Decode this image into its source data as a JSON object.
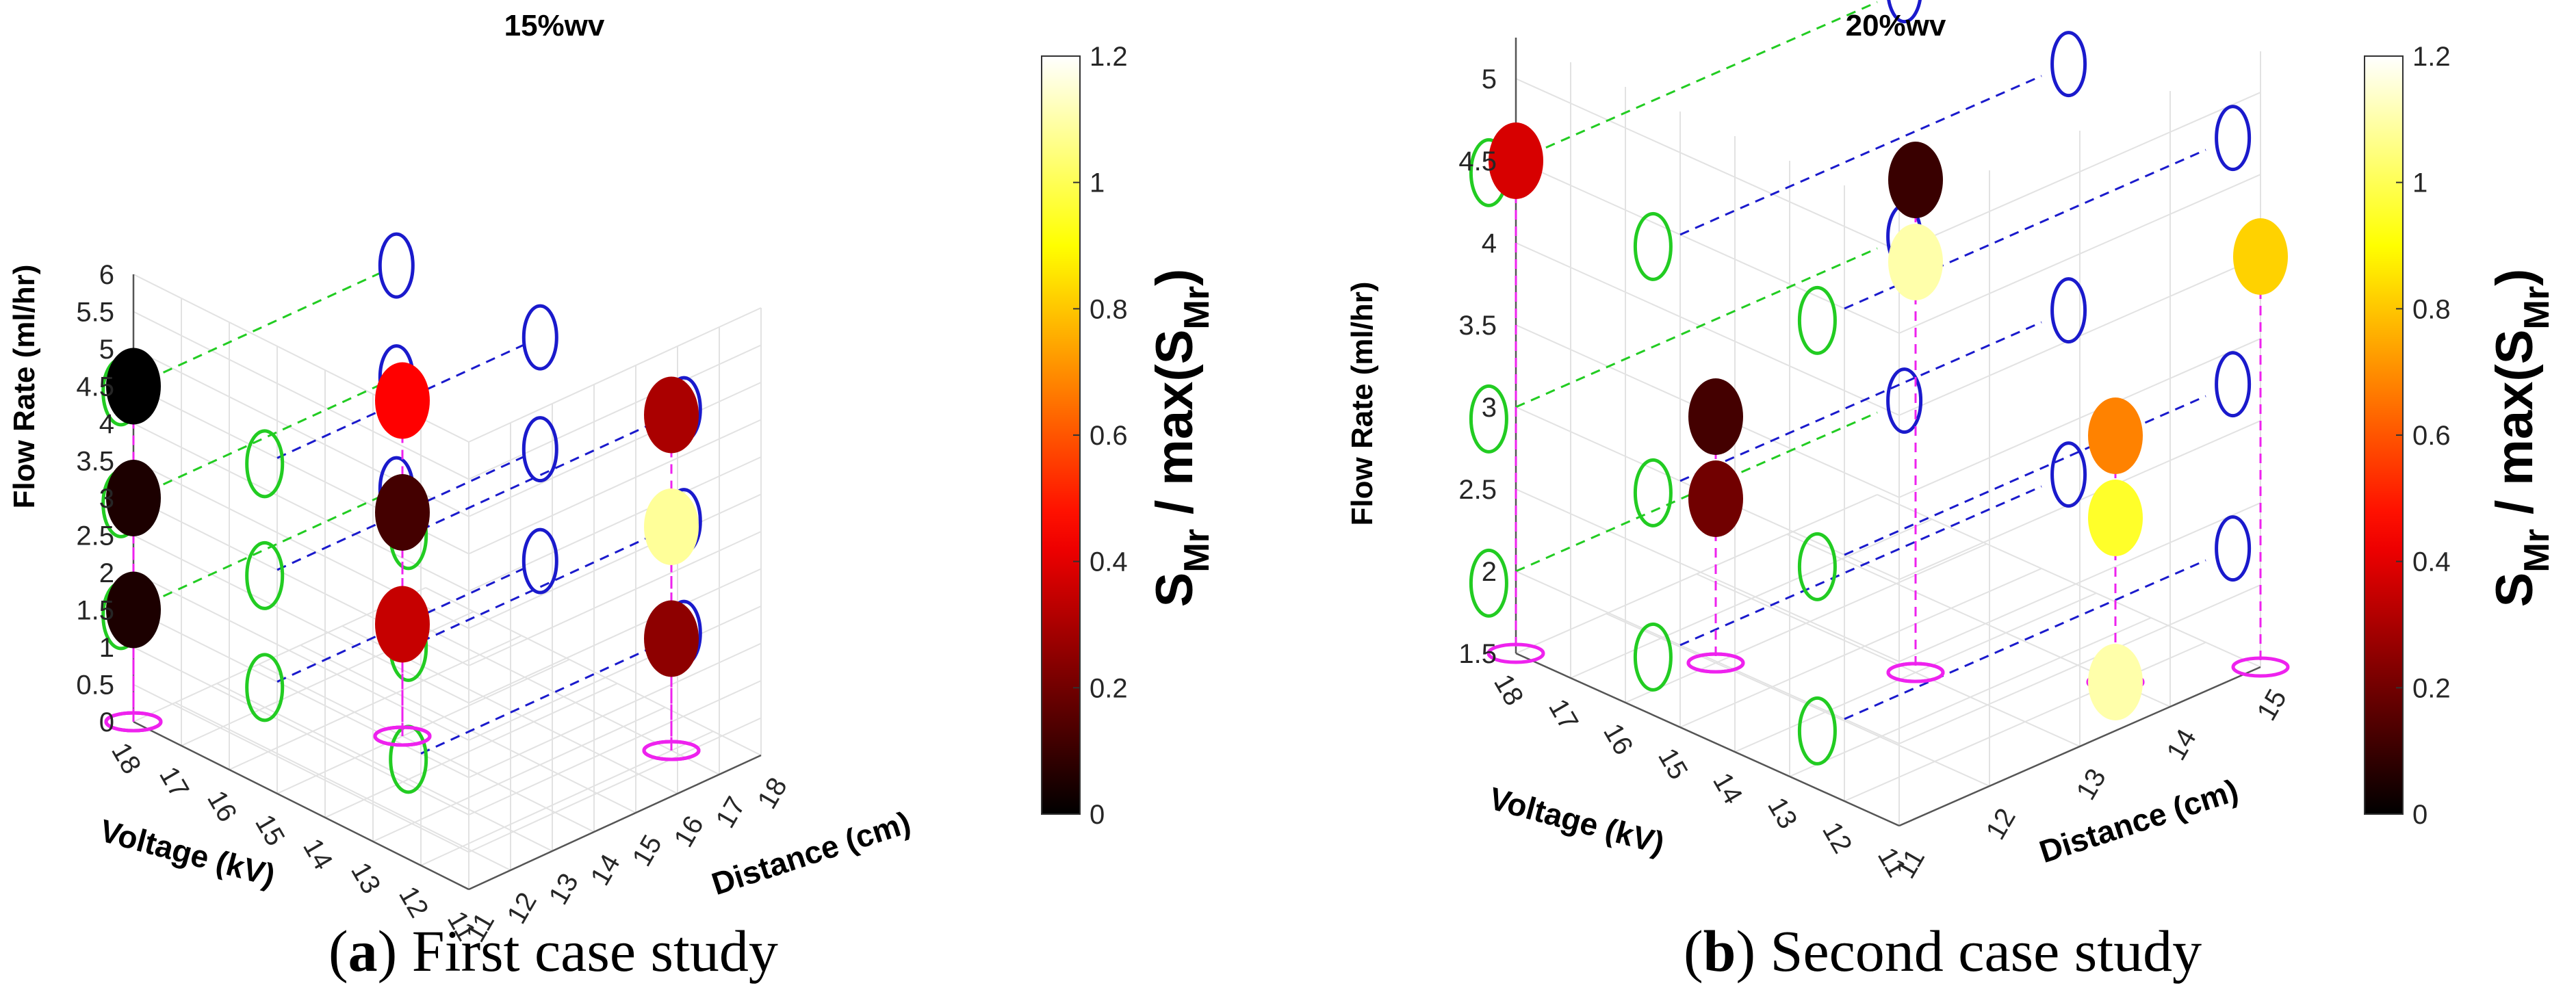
{
  "captions": {
    "a_letter": "a",
    "a_text": " First case study",
    "b_letter": "b",
    "b_text": " Second case study"
  },
  "colorbar": {
    "label_main": "S",
    "label_sub": "Mr",
    "label_mid": " / max(S",
    "label_sub2": "Mr",
    "label_end": ")"
  },
  "colors": {
    "spinning_ring": "#22cc22",
    "distance_ring": "#1a1acc",
    "projection": "#ee22ee",
    "grid": "#e2e2e2"
  },
  "chart_data": [
    {
      "type": "scatter3d",
      "title": "15%wv",
      "zlabel": "Flow Rate (ml/hr)",
      "xlabel": "Voltage (kV)",
      "ylabel": "Distance (cm)",
      "z_ticks": [
        "0",
        "0.5",
        "1",
        "1.5",
        "2",
        "2.5",
        "3",
        "3.5",
        "4",
        "4.5",
        "5",
        "5.5",
        "6"
      ],
      "x_ticks": [
        "18",
        "17",
        "16",
        "15",
        "14",
        "13",
        "12",
        "11"
      ],
      "y_ticks": [
        "11",
        "12",
        "13",
        "14",
        "15",
        "16",
        "17",
        "18"
      ],
      "colorbar": {
        "min": 0,
        "max": 1.2,
        "ticks": [
          "0",
          "0.2",
          "0.4",
          "0.6",
          "0.8",
          "1",
          "1.2"
        ],
        "colormap": "hot"
      },
      "points": [
        {
          "voltage": 18,
          "distance": 11,
          "flow": 4.5,
          "value": 0.0
        },
        {
          "voltage": 18,
          "distance": 11,
          "flow": 3.0,
          "value": 0.05
        },
        {
          "voltage": 18,
          "distance": 11,
          "flow": 1.5,
          "value": 0.05
        },
        {
          "voltage": 15,
          "distance": 14,
          "flow": 4.5,
          "value": 0.45
        },
        {
          "voltage": 15,
          "distance": 14,
          "flow": 3.0,
          "value": 0.12
        },
        {
          "voltage": 15,
          "distance": 14,
          "flow": 1.5,
          "value": 0.35
        },
        {
          "voltage": 12,
          "distance": 17,
          "flow": 4.5,
          "value": 0.3
        },
        {
          "voltage": 12,
          "distance": 17,
          "flow": 3.0,
          "value": 1.08
        },
        {
          "voltage": 12,
          "distance": 17,
          "flow": 1.5,
          "value": 0.25
        }
      ]
    },
    {
      "type": "scatter3d",
      "title": "20%wv",
      "zlabel": "Flow Rate (ml/hr)",
      "xlabel": "Voltage (kV)",
      "ylabel": "Distance (cm)",
      "z_ticks": [
        "1.5",
        "2",
        "2.5",
        "3",
        "3.5",
        "4",
        "4.5",
        "5"
      ],
      "x_ticks": [
        "18",
        "17",
        "16",
        "15",
        "14",
        "13",
        "12",
        "11"
      ],
      "y_ticks": [
        "11",
        "12",
        "13",
        "14",
        "15"
      ],
      "colorbar": {
        "min": 0,
        "max": 1.2,
        "ticks": [
          "0",
          "0.2",
          "0.4",
          "0.6",
          "0.8",
          "1",
          "1.2"
        ],
        "colormap": "hot"
      },
      "points": [
        {
          "voltage": 18,
          "distance": 11,
          "flow": 4.5,
          "value": 0.38
        },
        {
          "voltage": 16,
          "distance": 12,
          "flow": 3.0,
          "value": 0.12
        },
        {
          "voltage": 16,
          "distance": 12,
          "flow": 2.5,
          "value": 0.2
        },
        {
          "voltage": 14,
          "distance": 13,
          "flow": 4.5,
          "value": 0.1
        },
        {
          "voltage": 14,
          "distance": 13,
          "flow": 4.0,
          "value": 1.1
        },
        {
          "voltage": 12,
          "distance": 14,
          "flow": 3.0,
          "value": 0.68
        },
        {
          "voltage": 12,
          "distance": 14,
          "flow": 2.5,
          "value": 0.95
        },
        {
          "voltage": 12,
          "distance": 14,
          "flow": 1.5,
          "value": 1.1
        },
        {
          "voltage": 11,
          "distance": 15,
          "flow": 4.0,
          "value": 0.82
        }
      ]
    }
  ]
}
